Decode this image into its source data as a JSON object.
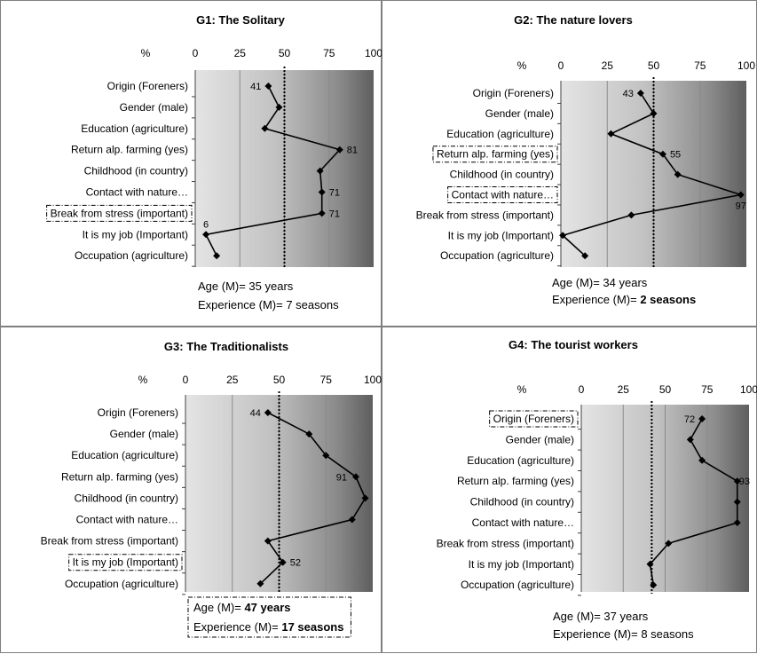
{
  "chart_data": [
    {
      "type": "line",
      "title": "G1: The Solitary",
      "unit_label": "%",
      "xlim": [
        0,
        100
      ],
      "xticks": [
        0,
        25,
        50,
        75,
        100
      ],
      "reference_line": 50,
      "categories": [
        "Origin (Foreners)",
        "Gender (male)",
        "Education (agriculture)",
        "Return alp. farming (yes)",
        "Childhood (in country)",
        "Contact with nature…",
        "Break from stress (important)",
        "It is my job (Important)",
        "Occupation (agriculture)"
      ],
      "values": [
        41,
        47,
        39,
        81,
        70,
        71,
        71,
        6,
        12
      ],
      "labeled_values": [
        "41",
        "",
        "",
        "81",
        "",
        "71",
        "71",
        "6",
        ""
      ],
      "highlighted": [
        "Break from stress (important)"
      ],
      "footer": [
        {
          "text": "Age (M)= 35 years",
          "bold": false
        },
        {
          "text": "Experience (M)= 7 seasons",
          "bold": false
        }
      ],
      "footer_boxed": false
    },
    {
      "type": "line",
      "title": "G2: The nature lovers",
      "unit_label": "%",
      "xlim": [
        0,
        100
      ],
      "xticks": [
        0,
        25,
        50,
        75,
        100
      ],
      "reference_line": 50,
      "categories": [
        "Origin (Foreners)",
        "Gender (male)",
        "Education (agriculture)",
        "Return alp. farming (yes)",
        "Childhood (in country)",
        "Contact with nature…",
        "Break from stress (important)",
        "It is my job (Important)",
        "Occupation (agriculture)"
      ],
      "values": [
        43,
        50,
        27,
        55,
        63,
        97,
        38,
        1,
        13
      ],
      "labeled_values": [
        "43",
        "",
        "",
        "55",
        "",
        "97",
        "",
        "",
        ""
      ],
      "highlighted": [
        "Return alp. farming (yes)",
        "Contact with nature…"
      ],
      "footer": [
        {
          "text": "Age (M)= 34 years",
          "bold": false
        },
        {
          "text": "Experience (M)= ",
          "bold": false,
          "suffix": "2 seasons"
        }
      ],
      "footer_boxed": false
    },
    {
      "type": "line",
      "title": "G3: The Traditionalists",
      "unit_label": "%",
      "xlim": [
        0,
        100
      ],
      "xticks": [
        0,
        25,
        50,
        75,
        100
      ],
      "reference_line": 50,
      "categories": [
        "Origin (Foreners)",
        "Gender (male)",
        "Education (agriculture)",
        "Return alp. farming (yes)",
        "Childhood (in country)",
        "Contact with nature…",
        "Break from stress (important)",
        "It is my job (Important)",
        "Occupation (agriculture)"
      ],
      "values": [
        44,
        66,
        75,
        91,
        96,
        89,
        44,
        52,
        40
      ],
      "labeled_values": [
        "44",
        "",
        "",
        "91",
        "",
        "",
        "",
        "52",
        ""
      ],
      "highlighted": [
        "It is my job (Important)"
      ],
      "footer": [
        {
          "text": "Age (M)= ",
          "bold": false,
          "suffix": "47 years"
        },
        {
          "text": "Experience (M)= ",
          "bold": false,
          "suffix": "17 seasons"
        }
      ],
      "footer_boxed": true
    },
    {
      "type": "line",
      "title": "G4: The tourist workers",
      "unit_label": "%",
      "xlim": [
        0,
        100
      ],
      "xticks": [
        0,
        25,
        50,
        75,
        100
      ],
      "reference_line": 42,
      "categories": [
        "Origin (Foreners)",
        "Gender (male)",
        "Education (agriculture)",
        "Return alp. farming (yes)",
        "Childhood (in country)",
        "Contact with nature…",
        "Break from stress (important)",
        "It is my job (Important)",
        "Occupation (agriculture)"
      ],
      "values": [
        72,
        65,
        72,
        93,
        93,
        93,
        52,
        41,
        43
      ],
      "labeled_values": [
        "72",
        "",
        "",
        "93",
        "",
        "",
        "",
        "",
        ""
      ],
      "highlighted": [
        "Origin (Foreners)"
      ],
      "footer": [
        {
          "text": "Age (M)= 37 years",
          "bold": false
        },
        {
          "text": "Experience (M)= 8 seasons",
          "bold": false
        }
      ],
      "footer_boxed": false
    }
  ]
}
